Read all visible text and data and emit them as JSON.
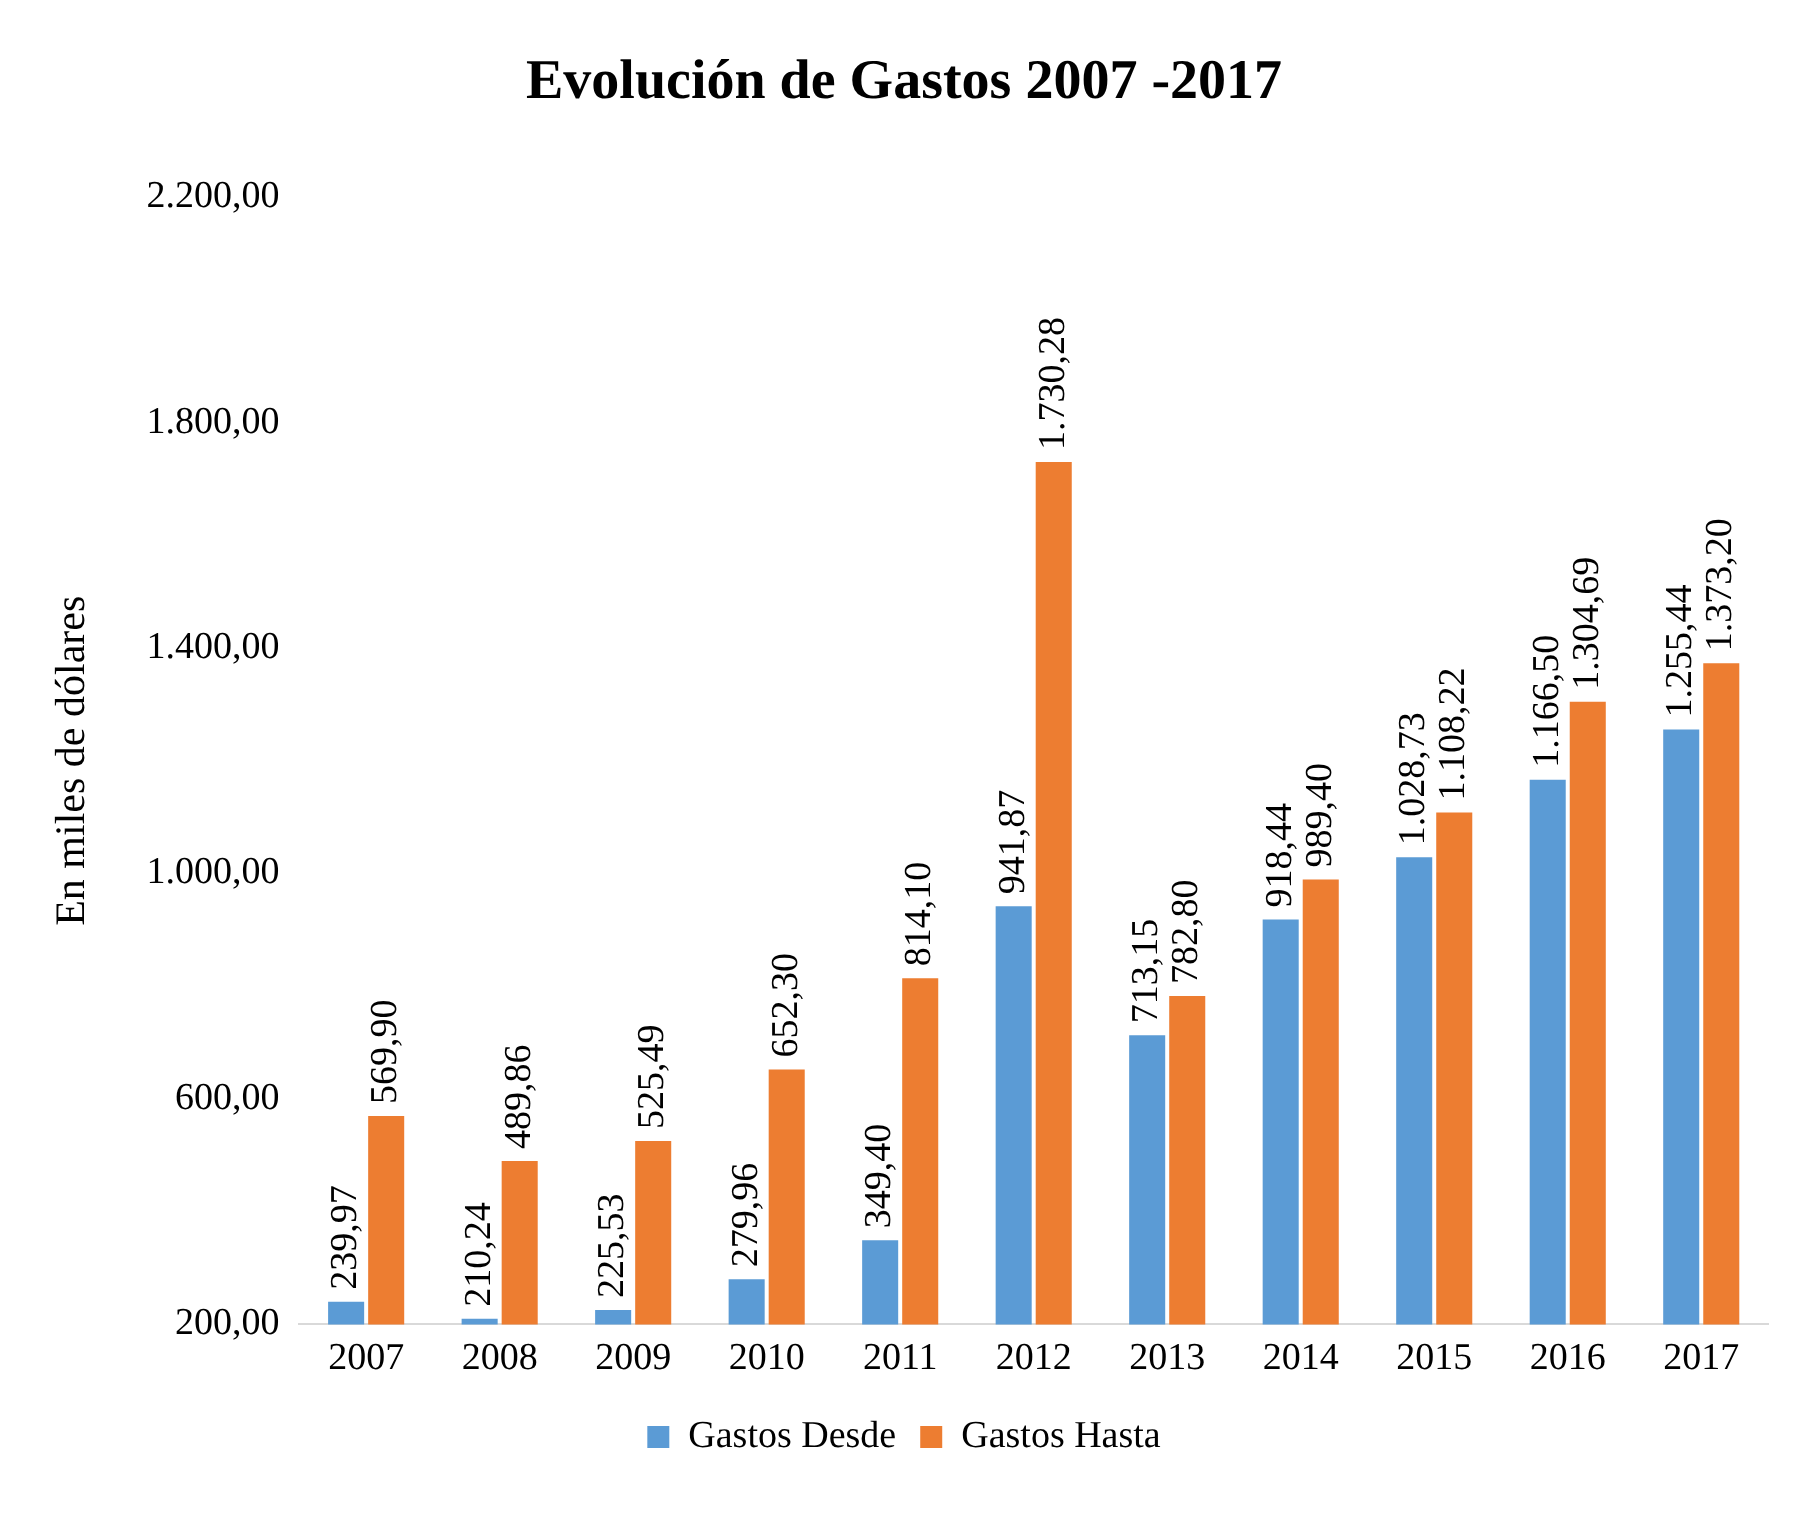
{
  "chart_data": {
    "type": "bar",
    "title": "Evolución de Gastos 2007 -2017",
    "ylabel": "En miles de dólares",
    "categories": [
      "2007",
      "2008",
      "2009",
      "2010",
      "2011",
      "2012",
      "2013",
      "2014",
      "2015",
      "2016",
      "2017"
    ],
    "series": [
      {
        "name": "Gastos Desde",
        "color": "#5b9bd5",
        "values": [
          239.97,
          210.24,
          225.53,
          279.96,
          349.4,
          941.87,
          713.15,
          918.44,
          1028.73,
          1166.5,
          1255.44
        ],
        "value_labels": [
          "239,97",
          "210,24",
          "225,53",
          "279,96",
          "349,40",
          "941,87",
          "713,15",
          "918,44",
          "1.028,73",
          "1.166,50",
          "1.255,44"
        ]
      },
      {
        "name": "Gastos Hasta",
        "color": "#ed7d31",
        "values": [
          569.9,
          489.86,
          525.49,
          652.3,
          814.1,
          1730.28,
          782.8,
          989.4,
          1108.22,
          1304.69,
          1373.2
        ],
        "value_labels": [
          "569,90",
          "489,86",
          "525,49",
          "652,30",
          "814,10",
          "1.730,28",
          "782,80",
          "989,40",
          "1.108,22",
          "1.304,69",
          "1.373,20"
        ]
      }
    ],
    "ylim": [
      200,
      2200
    ],
    "yticks": [
      {
        "value": 200,
        "label": "200,00"
      },
      {
        "value": 600,
        "label": "600,00"
      },
      {
        "value": 1000,
        "label": "1.000,00"
      },
      {
        "value": 1400,
        "label": "1.400,00"
      },
      {
        "value": 1800,
        "label": "1.800,00"
      },
      {
        "value": 2200,
        "label": "2.200,00"
      }
    ],
    "grid": false,
    "legend": "bottom"
  }
}
